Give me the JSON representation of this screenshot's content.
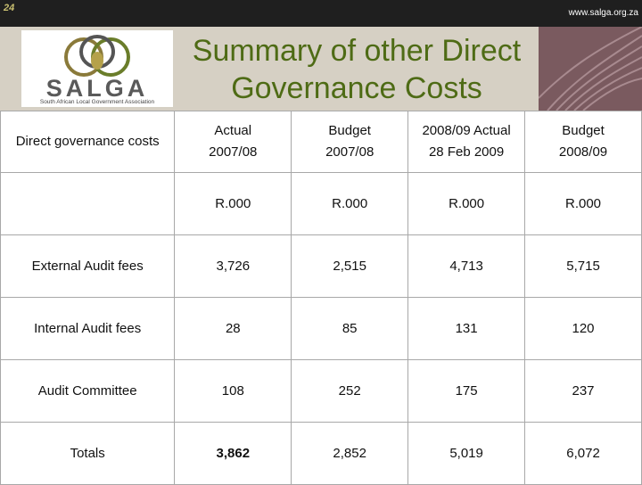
{
  "slide_number": "24",
  "url": "www.salga.org.za",
  "logo": {
    "word": "SALGA",
    "tagline": "South African Local Government Association"
  },
  "title_line1": "Summary of other Direct",
  "title_line2": "Governance Costs",
  "colors": {
    "title": "#4e6b15",
    "header_band": "#d6d0c4",
    "top_bar": "#1f1f1f",
    "deco": "#7a5a5f"
  },
  "table": {
    "header_label": "Direct governance costs",
    "columns": [
      {
        "line1": "Actual",
        "line2": "2007/08"
      },
      {
        "line1": "Budget",
        "line2": "2007/08"
      },
      {
        "line1": "2008/09 Actual",
        "line2": "28 Feb 2009"
      },
      {
        "line1": "Budget",
        "line2": "2008/09"
      }
    ],
    "units": [
      "R.000",
      "R.000",
      "R.000",
      "R.000"
    ],
    "rows": [
      {
        "label": "External Audit fees",
        "values": [
          "3,726",
          "2,515",
          "4,713",
          "5,715"
        ]
      },
      {
        "label": "Internal Audit fees",
        "values": [
          "28",
          "85",
          "131",
          "120"
        ]
      },
      {
        "label": "Audit Committee",
        "values": [
          "108",
          "252",
          "175",
          "237"
        ]
      }
    ],
    "totals": {
      "label": "Totals",
      "values": [
        "3,862",
        "2,852",
        "5,019",
        "6,072"
      ]
    }
  }
}
